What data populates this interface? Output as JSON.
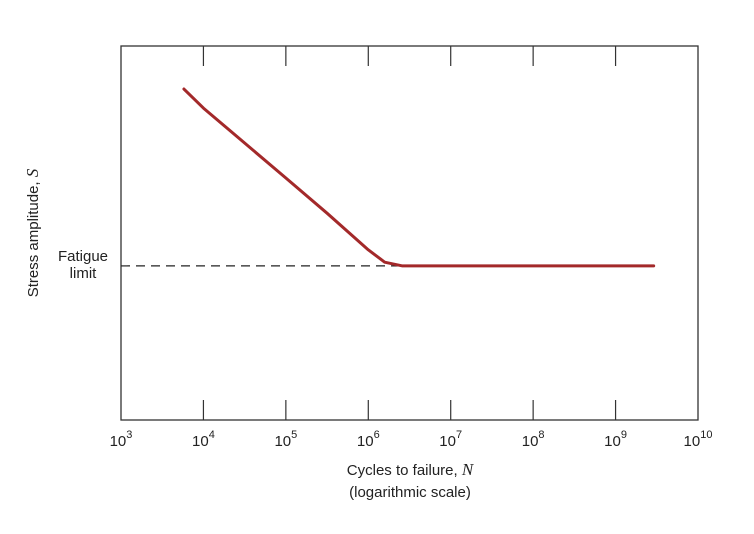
{
  "chart_data": {
    "type": "line",
    "x_label": "Cycles to failure, N",
    "x_label_note": "(logarithmic scale)",
    "y_label": "Stress amplitude, S",
    "x": [
      5800,
      10000,
      100000,
      316000,
      1000000,
      1580000,
      2600000,
      10000000,
      100000000,
      1000000000,
      2900000000
    ],
    "series": [
      {
        "color": "#a3292a",
        "values": [
          88.5,
          83.4,
          64.7,
          55.3,
          45.5,
          42.2,
          41.2,
          41.2,
          41.2,
          41.2,
          41.2
        ]
      }
    ],
    "xlim": [
      1000,
      10000000000
    ],
    "ylim": [
      0,
      100
    ],
    "log_x": true,
    "xticks": [
      {
        "value": 1000,
        "label": "10^3"
      },
      {
        "value": 10000,
        "label": "10^4"
      },
      {
        "value": 100000,
        "label": "10^5"
      },
      {
        "value": 1000000,
        "label": "10^6"
      },
      {
        "value": 10000000,
        "label": "10^7"
      },
      {
        "value": 100000000,
        "label": "10^8"
      },
      {
        "value": 1000000000,
        "label": "10^9"
      },
      {
        "value": 10000000000,
        "label": "10^10"
      }
    ],
    "fatigue_limit": {
      "label_lines": [
        "Fatigue",
        "limit"
      ],
      "value": 41.2,
      "x_end": 2600000
    }
  }
}
